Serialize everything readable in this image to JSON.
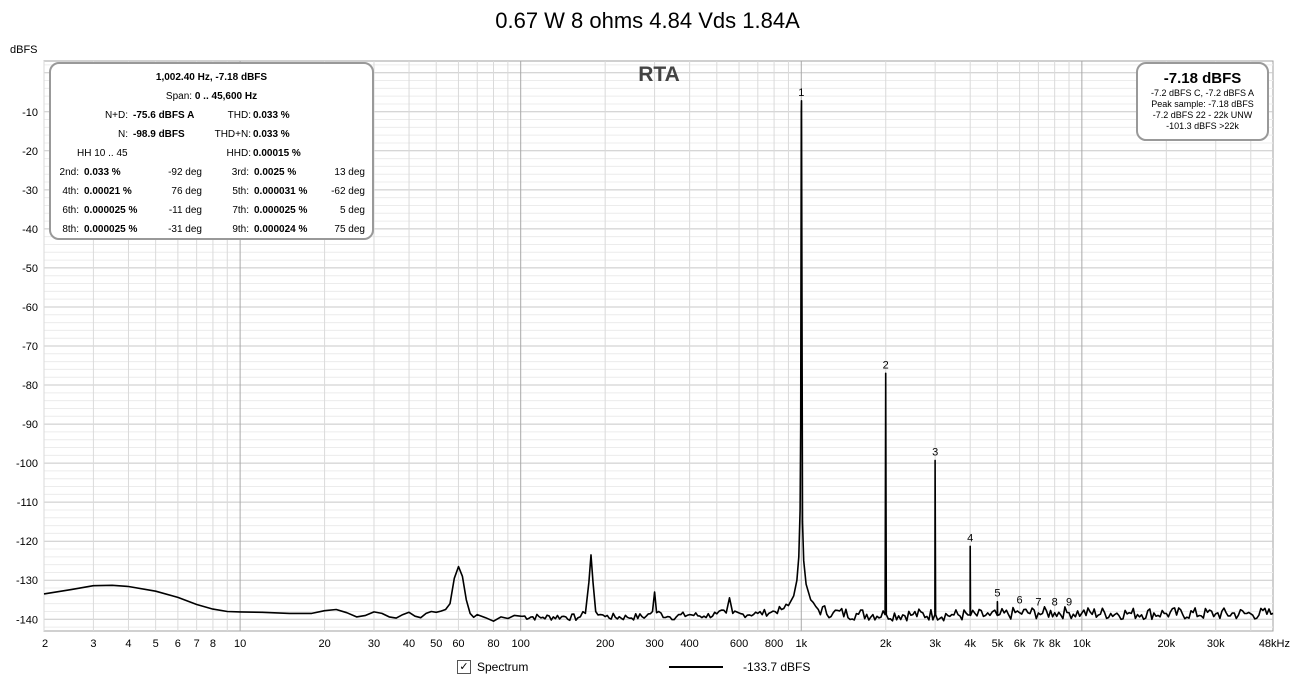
{
  "title": "0.67 W 8 ohms 4.84 Vds 1.84A",
  "rta_label": "RTA",
  "info": {
    "peak_line": "1,002.40 Hz, -7.18 dBFS",
    "span_label": "Span:",
    "span_value": "0 .. 45,600 Hz",
    "nd_label": "N+D:",
    "nd_value": "-75.6 dBFS A",
    "thd_label": "THD:",
    "thd_value": "0.033 %",
    "n_label": "N:",
    "n_value": "-98.9 dBFS",
    "thdn_label": "THD+N:",
    "thdn_value": "0.033 %",
    "hh_label": "HH 10 .. 45",
    "hhd_label": "HHD:",
    "hhd_value": "0.00015 %",
    "harmonics": [
      {
        "label": "2nd:",
        "value": "0.033 %",
        "phase": "-92 deg"
      },
      {
        "label": "3rd:",
        "value": "0.0025 %",
        "phase": "13 deg"
      },
      {
        "label": "4th:",
        "value": "0.00021 %",
        "phase": "76 deg"
      },
      {
        "label": "5th:",
        "value": "0.000031 %",
        "phase": "-62 deg"
      },
      {
        "label": "6th:",
        "value": "0.000025 %",
        "phase": "-11 deg"
      },
      {
        "label": "7th:",
        "value": "0.000025 %",
        "phase": "5 deg"
      },
      {
        "label": "8th:",
        "value": "0.000025 %",
        "phase": "-31 deg"
      },
      {
        "label": "9th:",
        "value": "0.000024 %",
        "phase": "75 deg"
      }
    ]
  },
  "peak_box": {
    "big": "-7.18 dBFS",
    "line1": "-7.2 dBFS C, -7.2 dBFS A",
    "line2": "Peak sample: -7.18 dBFS",
    "line3": "-7.2 dBFS 22 - 22k UNW",
    "line4": "-101.3 dBFS >22k"
  },
  "legend": {
    "series_label": "Spectrum",
    "checked": true,
    "line_value": "-133.7 dBFS"
  },
  "chart_data": {
    "type": "line",
    "xscale": "log",
    "xlim": [
      2,
      48000
    ],
    "ylim": [
      -143,
      3
    ],
    "ylabel": "dBFS",
    "grid": true,
    "y_ticks": [
      -10,
      -20,
      -30,
      -40,
      -50,
      -60,
      -70,
      -80,
      -90,
      -100,
      -110,
      -120,
      -130,
      -140
    ],
    "x_ticks": [
      {
        "v": 2,
        "label": "2"
      },
      {
        "v": 3,
        "label": "3"
      },
      {
        "v": 4,
        "label": "4"
      },
      {
        "v": 5,
        "label": "5"
      },
      {
        "v": 6,
        "label": "6"
      },
      {
        "v": 7,
        "label": "7"
      },
      {
        "v": 8,
        "label": "8"
      },
      {
        "v": 10,
        "label": "10"
      },
      {
        "v": 20,
        "label": "20"
      },
      {
        "v": 30,
        "label": "30"
      },
      {
        "v": 40,
        "label": "40"
      },
      {
        "v": 50,
        "label": "50"
      },
      {
        "v": 60,
        "label": "60"
      },
      {
        "v": 80,
        "label": "80"
      },
      {
        "v": 100,
        "label": "100"
      },
      {
        "v": 200,
        "label": "200"
      },
      {
        "v": 300,
        "label": "300"
      },
      {
        "v": 400,
        "label": "400"
      },
      {
        "v": 600,
        "label": "600"
      },
      {
        "v": 800,
        "label": "800"
      },
      {
        "v": 1000,
        "label": "1k"
      },
      {
        "v": 2000,
        "label": "2k"
      },
      {
        "v": 3000,
        "label": "3k"
      },
      {
        "v": 4000,
        "label": "4k"
      },
      {
        "v": 5000,
        "label": "5k"
      },
      {
        "v": 6000,
        "label": "6k"
      },
      {
        "v": 7000,
        "label": "7k"
      },
      {
        "v": 8000,
        "label": "8k"
      },
      {
        "v": 10000,
        "label": "10k"
      },
      {
        "v": 20000,
        "label": "20k"
      },
      {
        "v": 30000,
        "label": "30k"
      },
      {
        "v": 48000,
        "label": "48kHz"
      }
    ],
    "series": [
      {
        "color": "#000000",
        "points": [
          [
            2,
            -133.5
          ],
          [
            2.5,
            -132.4
          ],
          [
            3,
            -131.4
          ],
          [
            3.5,
            -131.3
          ],
          [
            4,
            -131.6
          ],
          [
            5,
            -132.8
          ],
          [
            6,
            -134.4
          ],
          [
            7,
            -136.2
          ],
          [
            8,
            -137.4
          ],
          [
            9,
            -138.0
          ],
          [
            10,
            -138.1
          ],
          [
            12,
            -138.2
          ],
          [
            15,
            -138.5
          ],
          [
            18,
            -138.5
          ],
          [
            20,
            -137.8
          ],
          [
            22,
            -137.5
          ],
          [
            24,
            -138.3
          ],
          [
            26,
            -139.4
          ],
          [
            28,
            -139.0
          ],
          [
            30,
            -138.1
          ],
          [
            32,
            -138.5
          ],
          [
            34,
            -139.4
          ],
          [
            36,
            -139.7
          ],
          [
            38,
            -138.8
          ],
          [
            40,
            -138.2
          ],
          [
            42,
            -139.2
          ],
          [
            44,
            -139.6
          ],
          [
            46,
            -138.5
          ],
          [
            48,
            -138.0
          ],
          [
            50,
            -138.2
          ],
          [
            52,
            -137.9
          ],
          [
            54,
            -137.5
          ],
          [
            56,
            -136.0
          ],
          [
            58,
            -129.5
          ],
          [
            60,
            -126.5
          ],
          [
            62,
            -129.0
          ],
          [
            64,
            -135.0
          ],
          [
            66,
            -138.5
          ],
          [
            68,
            -139.5
          ],
          [
            70,
            -138.8
          ],
          [
            75,
            -139.6
          ],
          [
            80,
            -140.5
          ],
          [
            85,
            -139.4
          ],
          [
            90,
            -139.8
          ],
          [
            95,
            -139.0
          ],
          [
            100,
            -139.2
          ],
          [
            120,
            -139.5
          ],
          [
            140,
            -139.3
          ],
          [
            160,
            -139.6
          ],
          [
            170,
            -138.5
          ],
          [
            175,
            -130.5
          ],
          [
            178,
            -123.5
          ],
          [
            181,
            -130.5
          ],
          [
            185,
            -138.0
          ],
          [
            200,
            -139.3
          ],
          [
            240,
            -139.5
          ],
          [
            280,
            -139.2
          ],
          [
            295,
            -138.0
          ],
          [
            300,
            -133.0
          ],
          [
            305,
            -138.3
          ],
          [
            340,
            -139.4
          ],
          [
            400,
            -138.8
          ],
          [
            450,
            -139.2
          ],
          [
            500,
            -138.6
          ],
          [
            540,
            -138.4
          ],
          [
            555,
            -134.5
          ],
          [
            570,
            -138.5
          ],
          [
            620,
            -138.7
          ],
          [
            700,
            -138.5
          ],
          [
            780,
            -138.2
          ],
          [
            850,
            -137.5
          ],
          [
            900,
            -136.5
          ],
          [
            940,
            -134.0
          ],
          [
            965,
            -130.0
          ],
          [
            980,
            -124.0
          ],
          [
            990,
            -112.0
          ],
          [
            995,
            -90.0
          ],
          [
            1000,
            -10.0
          ],
          [
            1002,
            -7.2
          ],
          [
            1005,
            -50.0
          ],
          [
            1010,
            -115.0
          ],
          [
            1020,
            -125.0
          ],
          [
            1040,
            -131.0
          ],
          [
            1080,
            -135.0
          ],
          [
            1150,
            -137.5
          ],
          [
            1300,
            -138.3
          ],
          [
            1600,
            -138.7
          ],
          [
            1990,
            -138.8
          ],
          [
            2000,
            -77.0
          ],
          [
            2010,
            -138.8
          ],
          [
            2500,
            -138.8
          ],
          [
            2995,
            -138.8
          ],
          [
            3000,
            -99.3
          ],
          [
            3010,
            -138.8
          ],
          [
            3500,
            -138.9
          ],
          [
            3995,
            -138.9
          ],
          [
            4000,
            -121.3
          ],
          [
            4010,
            -139.0
          ],
          [
            4700,
            -139.0
          ],
          [
            4995,
            -139.0
          ],
          [
            5000,
            -135.5
          ],
          [
            5010,
            -139.0
          ],
          [
            6000,
            -138.3
          ],
          [
            7000,
            -138.4
          ],
          [
            8000,
            -138.3
          ],
          [
            9000,
            -138.3
          ],
          [
            10000,
            -138.4
          ],
          [
            15000,
            -138.5
          ],
          [
            20000,
            -138.5
          ],
          [
            30000,
            -138.6
          ],
          [
            40000,
            -138.6
          ],
          [
            48000,
            -138.5
          ]
        ]
      }
    ],
    "harmonic_markers": [
      {
        "label": "1",
        "x": 1000,
        "y": -7.2
      },
      {
        "label": "2",
        "x": 2000,
        "y": -77.0
      },
      {
        "label": "3",
        "x": 3000,
        "y": -99.3
      },
      {
        "label": "4",
        "x": 4000,
        "y": -121.3
      },
      {
        "label": "5",
        "x": 5000,
        "y": -135.5
      },
      {
        "label": "6",
        "x": 6000,
        "y": -137.2
      },
      {
        "label": "7",
        "x": 7000,
        "y": -137.8
      },
      {
        "label": "8",
        "x": 8000,
        "y": -137.8
      },
      {
        "label": "9",
        "x": 9000,
        "y": -137.8
      }
    ]
  }
}
